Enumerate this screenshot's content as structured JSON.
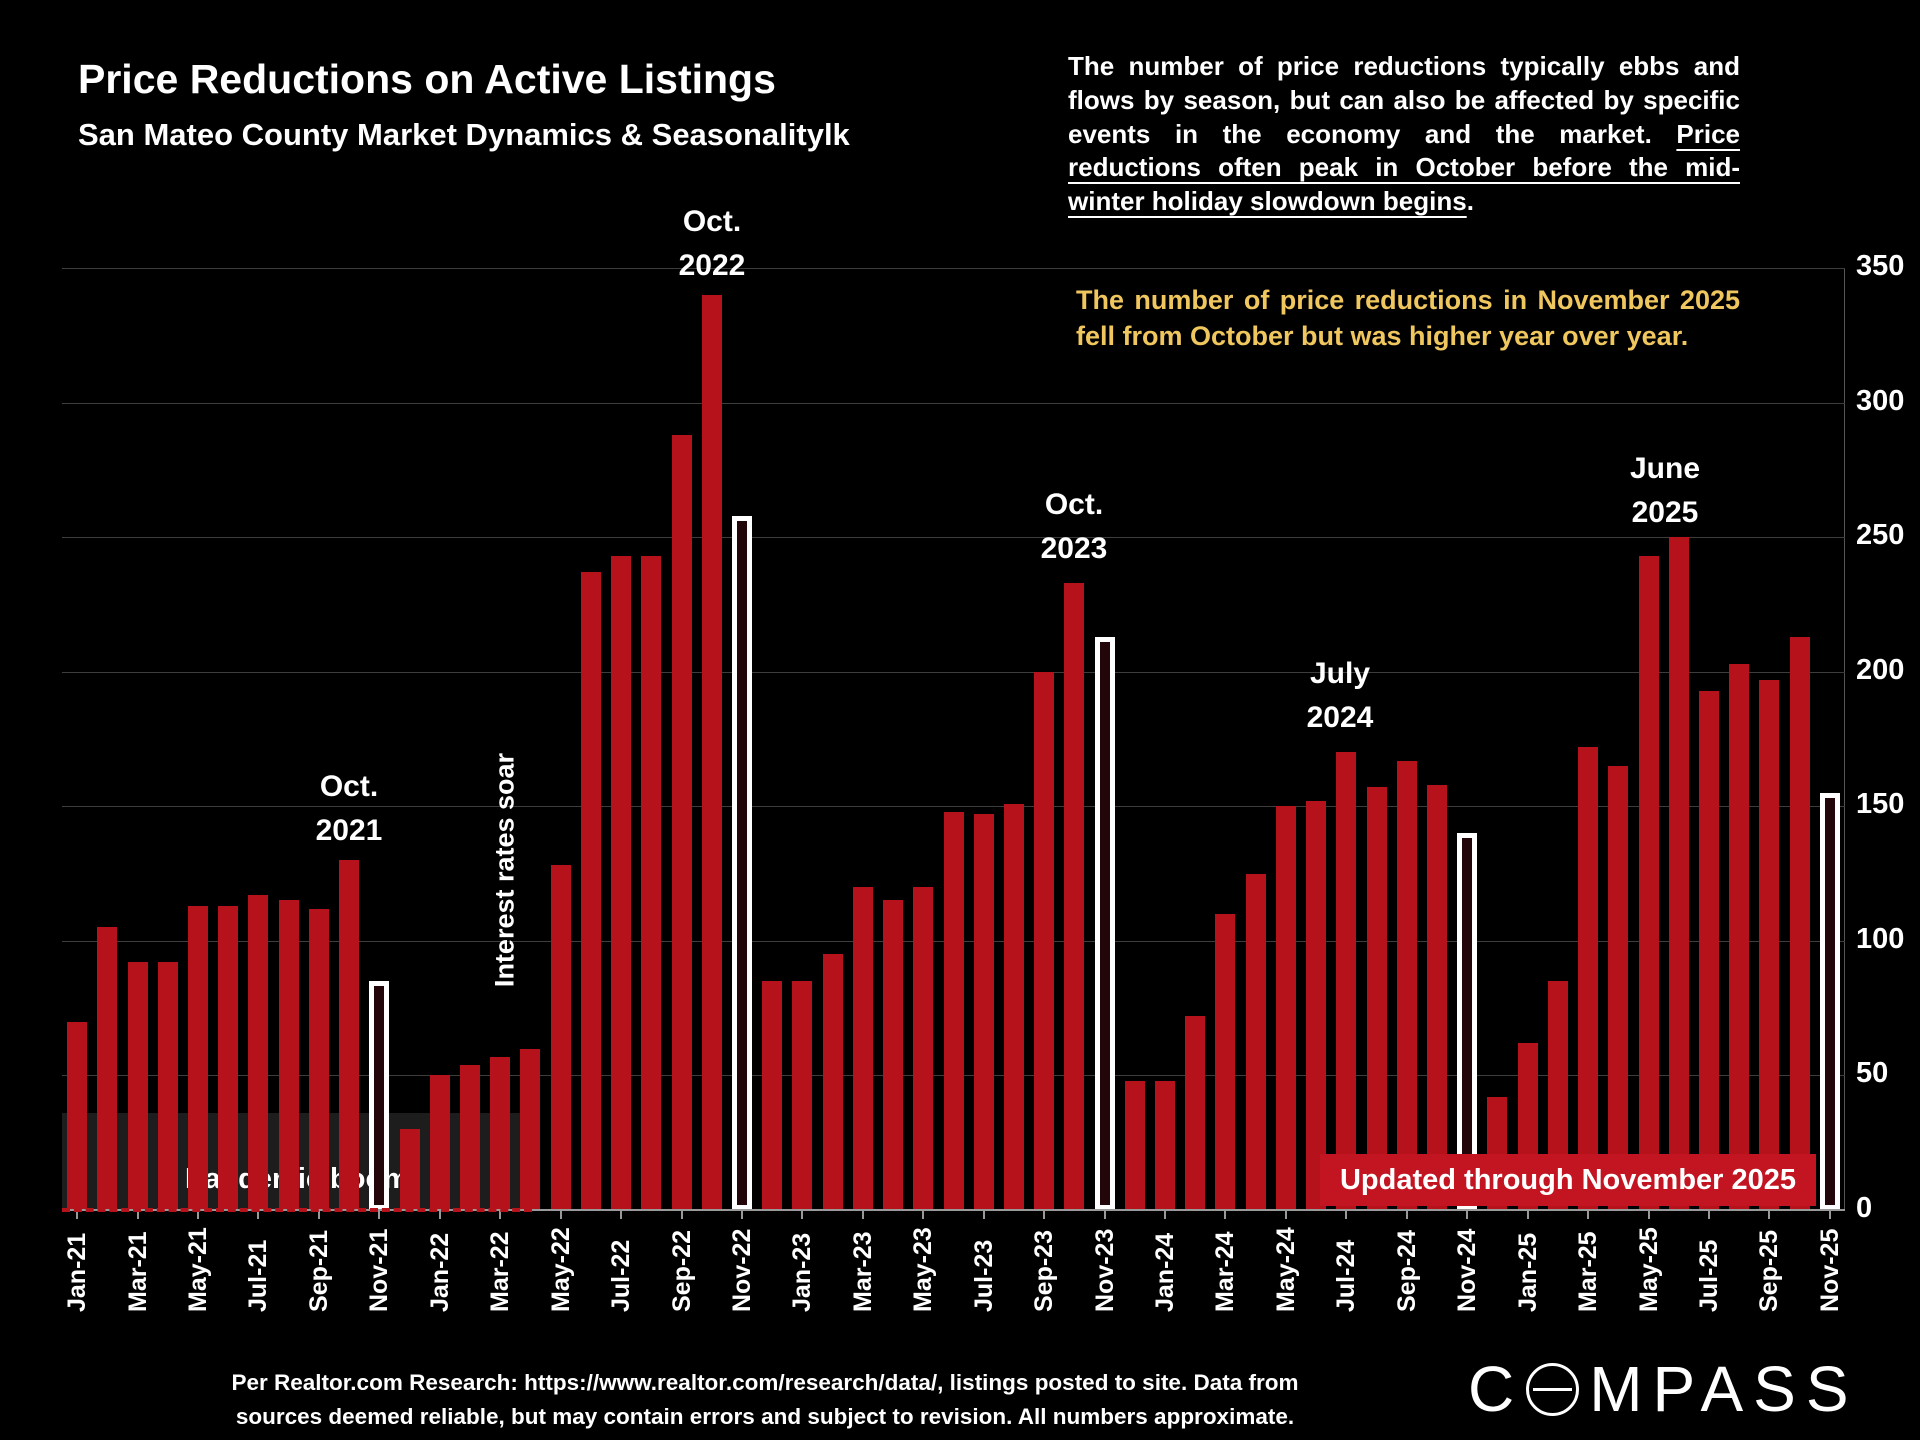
{
  "title": "Price Reductions on Active Listings",
  "subtitle": "San Mateo County Market Dynamics & Seasonalitylk",
  "commentary": {
    "para1_normal": "The number of price reductions typically ebbs and flows by season, but can also be affected by specific events in the economy and the market. ",
    "para1_underlined": "Price reductions often peak in October before the mid-winter holiday slowdown begins",
    "para1_end": ".",
    "para2": "The number of price reductions in November 2025 fell from October but was higher year over year."
  },
  "annotations": {
    "oct_2021": [
      "Oct.",
      "2021"
    ],
    "oct_2022": [
      "Oct.",
      "2022"
    ],
    "oct_2023": [
      "Oct.",
      "2023"
    ],
    "july_2024": [
      "July",
      "2024"
    ],
    "june_2025": [
      "June",
      "2025"
    ],
    "interest_rates": "Interest rates soar",
    "pandemic": "Pandemic boom",
    "banner": "Updated through November 2025"
  },
  "footer": {
    "line1": "Per Realtor.com Research:  https://www.realtor.com/research/data/, listings posted to site. Data from",
    "line2": "sources deemed reliable, but may contain errors and subject to revision. All numbers approximate."
  },
  "logo": {
    "pre": "C",
    "post": "MPASS"
  },
  "colors": {
    "bar": "#b5121b",
    "highlight_fill": "#220609",
    "highlight_border": "#ffffff",
    "banner_bg": "#c21421",
    "note_text": "#f0c75e"
  },
  "chart_data": {
    "type": "bar",
    "title": "Price Reductions on Active Listings",
    "xlabel": "",
    "ylabel": "",
    "ylim": [
      0,
      350
    ],
    "ytick_labels": [
      0,
      50,
      100,
      150,
      200,
      250,
      300,
      350
    ],
    "xtick_every": 2,
    "grid": true,
    "yaxis_side": "right",
    "months": [
      {
        "label": "Jan-21",
        "value": 70
      },
      {
        "label": "Feb-21",
        "value": 105
      },
      {
        "label": "Mar-21",
        "value": 92
      },
      {
        "label": "Apr-21",
        "value": 92
      },
      {
        "label": "May-21",
        "value": 113
      },
      {
        "label": "Jun-21",
        "value": 113
      },
      {
        "label": "Jul-21",
        "value": 117
      },
      {
        "label": "Aug-21",
        "value": 115
      },
      {
        "label": "Sep-21",
        "value": 112
      },
      {
        "label": "Oct-21",
        "value": 130
      },
      {
        "label": "Nov-21",
        "value": 85,
        "highlight": true
      },
      {
        "label": "Dec-21",
        "value": 30
      },
      {
        "label": "Jan-22",
        "value": 50
      },
      {
        "label": "Feb-22",
        "value": 54
      },
      {
        "label": "Mar-22",
        "value": 57
      },
      {
        "label": "Apr-22",
        "value": 60
      },
      {
        "label": "May-22",
        "value": 128
      },
      {
        "label": "Jun-22",
        "value": 237
      },
      {
        "label": "Jul-22",
        "value": 243
      },
      {
        "label": "Aug-22",
        "value": 243
      },
      {
        "label": "Sep-22",
        "value": 288
      },
      {
        "label": "Oct-22",
        "value": 340
      },
      {
        "label": "Nov-22",
        "value": 258,
        "highlight": true
      },
      {
        "label": "Dec-22",
        "value": 85
      },
      {
        "label": "Jan-23",
        "value": 85
      },
      {
        "label": "Feb-23",
        "value": 95
      },
      {
        "label": "Mar-23",
        "value": 120
      },
      {
        "label": "Apr-23",
        "value": 115
      },
      {
        "label": "May-23",
        "value": 120
      },
      {
        "label": "Jun-23",
        "value": 148
      },
      {
        "label": "Jul-23",
        "value": 147
      },
      {
        "label": "Aug-23",
        "value": 151
      },
      {
        "label": "Sep-23",
        "value": 200
      },
      {
        "label": "Oct-23",
        "value": 233
      },
      {
        "label": "Nov-23",
        "value": 213,
        "highlight": true
      },
      {
        "label": "Dec-23",
        "value": 48
      },
      {
        "label": "Jan-24",
        "value": 48
      },
      {
        "label": "Feb-24",
        "value": 72
      },
      {
        "label": "Mar-24",
        "value": 110
      },
      {
        "label": "Apr-24",
        "value": 125
      },
      {
        "label": "May-24",
        "value": 150
      },
      {
        "label": "Jun-24",
        "value": 152
      },
      {
        "label": "Jul-24",
        "value": 170
      },
      {
        "label": "Aug-24",
        "value": 157
      },
      {
        "label": "Sep-24",
        "value": 167
      },
      {
        "label": "Oct-24",
        "value": 158
      },
      {
        "label": "Nov-24",
        "value": 140,
        "highlight": true
      },
      {
        "label": "Dec-24",
        "value": 42
      },
      {
        "label": "Jan-25",
        "value": 62
      },
      {
        "label": "Feb-25",
        "value": 85
      },
      {
        "label": "Mar-25",
        "value": 172
      },
      {
        "label": "Apr-25",
        "value": 165
      },
      {
        "label": "May-25",
        "value": 243
      },
      {
        "label": "Jun-25",
        "value": 250
      },
      {
        "label": "Jul-25",
        "value": 193
      },
      {
        "label": "Aug-25",
        "value": 203
      },
      {
        "label": "Sep-25",
        "value": 197
      },
      {
        "label": "Oct-25",
        "value": 213
      },
      {
        "label": "Nov-25",
        "value": 155,
        "highlight": true
      }
    ]
  }
}
